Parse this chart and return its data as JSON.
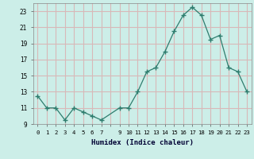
{
  "x_full": [
    0,
    1,
    2,
    3,
    4,
    5,
    6,
    7,
    9,
    10,
    11,
    12,
    13,
    14,
    15,
    16,
    17,
    18,
    19,
    20,
    21,
    22,
    23
  ],
  "y_full": [
    12.5,
    11.0,
    11.0,
    9.5,
    11.0,
    10.5,
    10.0,
    9.5,
    11.0,
    11.0,
    13.0,
    15.5,
    16.0,
    18.0,
    20.5,
    22.5,
    23.5,
    22.5,
    19.5,
    20.0,
    16.0,
    15.5,
    13.0
  ],
  "xlabel": "Humidex (Indice chaleur)",
  "line_color": "#2e7d6e",
  "bg_color": "#cceee8",
  "plot_bg": "#cceee8",
  "grid_color": "#d8b8b8",
  "ylim": [
    9,
    24
  ],
  "xlim": [
    -0.5,
    23.5
  ],
  "yticks": [
    9,
    11,
    13,
    15,
    17,
    19,
    21,
    23
  ],
  "xtick_labels": [
    "0",
    "1",
    "2",
    "3",
    "4",
    "5",
    "6",
    "7",
    "",
    "9",
    "10",
    "11",
    "12",
    "13",
    "14",
    "15",
    "16",
    "17",
    "18",
    "19",
    "20",
    "21",
    "22",
    "23"
  ]
}
